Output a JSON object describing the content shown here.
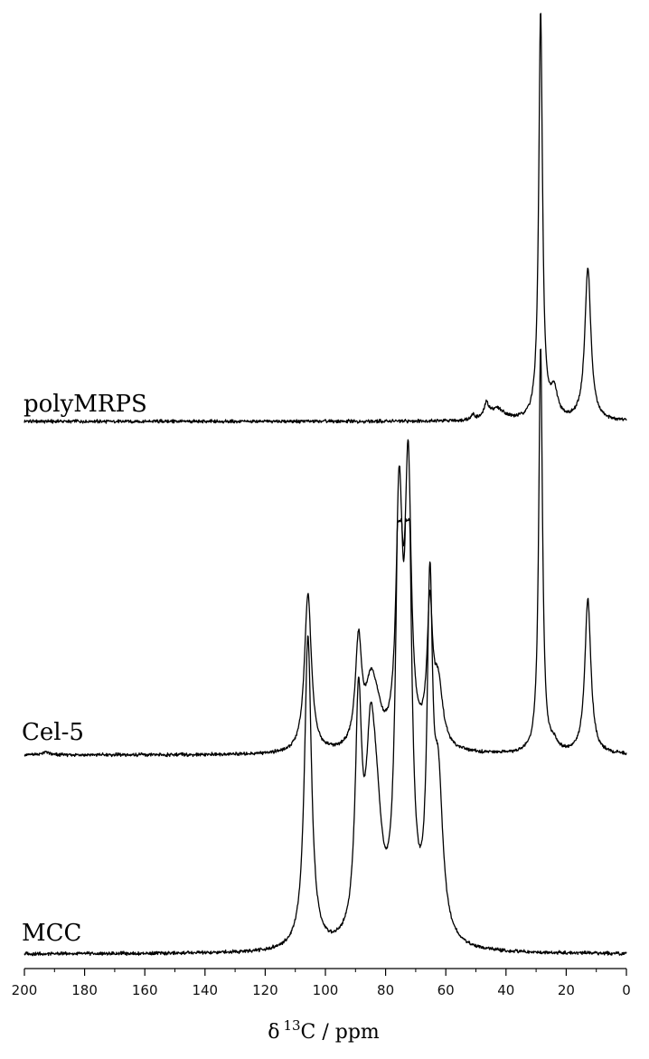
{
  "chart_data": {
    "type": "line",
    "title": "",
    "xlabel": "δ 13C / ppm",
    "xlabel_parts": {
      "symbol": "δ",
      "sup": "13",
      "rest": "C / ppm"
    },
    "ylabel": "",
    "xlim": [
      200,
      0
    ],
    "x_reversed": true,
    "x_ticks": [
      200,
      180,
      160,
      140,
      120,
      100,
      80,
      60,
      40,
      20,
      0
    ],
    "y_axis_visible": false,
    "grid": false,
    "line_color": "#000000",
    "series": [
      {
        "name": "polyMRPS",
        "peaks": [
          {
            "ppm": 51.0,
            "height": 0.012,
            "width": 0.8
          },
          {
            "ppm": 46.5,
            "height": 0.036,
            "width": 0.9
          },
          {
            "ppm": 43.0,
            "height": 0.028,
            "width": 3.0
          },
          {
            "ppm": 28.5,
            "height": 1.0,
            "width": 0.75
          },
          {
            "ppm": 24.0,
            "height": 0.066,
            "width": 1.4
          },
          {
            "ppm": 12.8,
            "height": 0.375,
            "width": 1.2
          }
        ]
      },
      {
        "name": "Cel-5",
        "peaks": [
          {
            "ppm": 193.0,
            "height": 0.007,
            "width": 1.5
          },
          {
            "ppm": 105.8,
            "height": 0.39,
            "width": 1.4
          },
          {
            "ppm": 89.0,
            "height": 0.26,
            "width": 1.3
          },
          {
            "ppm": 85.0,
            "height": 0.13,
            "width": 2.0
          },
          {
            "ppm": 83.0,
            "height": 0.07,
            "width": 2.2
          },
          {
            "ppm": 75.5,
            "height": 0.6,
            "width": 1.2
          },
          {
            "ppm": 72.5,
            "height": 0.67,
            "width": 1.2
          },
          {
            "ppm": 65.3,
            "height": 0.33,
            "width": 1.1
          },
          {
            "ppm": 62.5,
            "height": 0.15,
            "width": 1.8
          },
          {
            "ppm": 28.5,
            "height": 1.0,
            "width": 0.75
          },
          {
            "ppm": 24.0,
            "height": 0.02,
            "width": 1.4
          },
          {
            "ppm": 12.8,
            "height": 0.38,
            "width": 1.2
          }
        ]
      },
      {
        "name": "MCC",
        "peaks": [
          {
            "ppm": 105.8,
            "height": 0.72,
            "width": 1.4
          },
          {
            "ppm": 89.0,
            "height": 0.52,
            "width": 1.3
          },
          {
            "ppm": 85.0,
            "height": 0.38,
            "width": 1.9
          },
          {
            "ppm": 83.0,
            "height": 0.2,
            "width": 2.2
          },
          {
            "ppm": 75.5,
            "height": 1.0,
            "width": 1.3
          },
          {
            "ppm": 72.5,
            "height": 1.0,
            "width": 1.3
          },
          {
            "ppm": 65.3,
            "height": 0.75,
            "width": 1.1
          },
          {
            "ppm": 62.5,
            "height": 0.34,
            "width": 1.8
          }
        ]
      }
    ]
  }
}
